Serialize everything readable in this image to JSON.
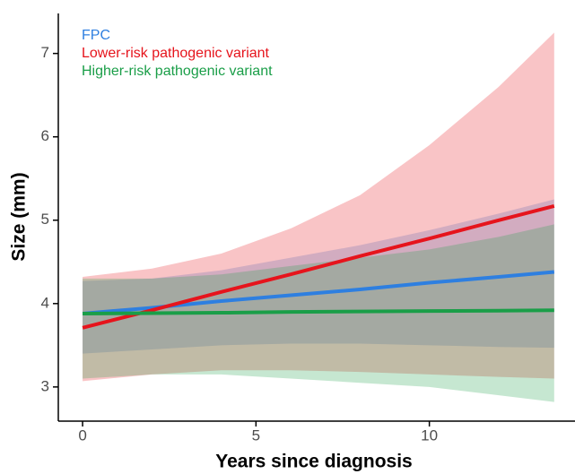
{
  "chart_data": {
    "type": "line",
    "x_label": "Years since diagnosis",
    "y_label": "Size (mm)",
    "x": [
      0,
      2,
      4,
      6,
      8,
      10,
      12,
      13.6
    ],
    "xlim": [
      -0.7,
      14.2
    ],
    "ylim": [
      2.59,
      7.48
    ],
    "xticks": [
      0,
      5,
      10
    ],
    "yticks": [
      3,
      4,
      5,
      6,
      7
    ],
    "series": [
      {
        "name": "FPC",
        "color": "#2e7fe0",
        "values": [
          3.88,
          3.95,
          4.03,
          4.1,
          4.17,
          4.25,
          4.32,
          4.38
        ],
        "upper": [
          4.27,
          4.3,
          4.4,
          4.55,
          4.7,
          4.88,
          5.08,
          5.25
        ],
        "lower": [
          3.4,
          3.45,
          3.5,
          3.52,
          3.52,
          3.5,
          3.48,
          3.47
        ]
      },
      {
        "name": "Lower-risk pathogenic variant",
        "color": "#e6141c",
        "values": [
          3.71,
          3.92,
          4.14,
          4.35,
          4.57,
          4.78,
          5.0,
          5.17
        ],
        "upper": [
          4.32,
          4.42,
          4.6,
          4.9,
          5.3,
          5.9,
          6.6,
          7.25
        ],
        "lower": [
          3.07,
          3.15,
          3.2,
          3.2,
          3.18,
          3.15,
          3.12,
          3.1
        ]
      },
      {
        "name": "Higher-risk pathogenic variant",
        "color": "#1a9e48",
        "values": [
          3.88,
          3.885,
          3.89,
          3.9,
          3.905,
          3.91,
          3.915,
          3.92
        ],
        "upper": [
          4.3,
          4.3,
          4.35,
          4.45,
          4.55,
          4.65,
          4.8,
          4.95
        ],
        "lower": [
          3.1,
          3.15,
          3.15,
          3.1,
          3.05,
          3.0,
          2.9,
          2.82
        ]
      }
    ]
  }
}
